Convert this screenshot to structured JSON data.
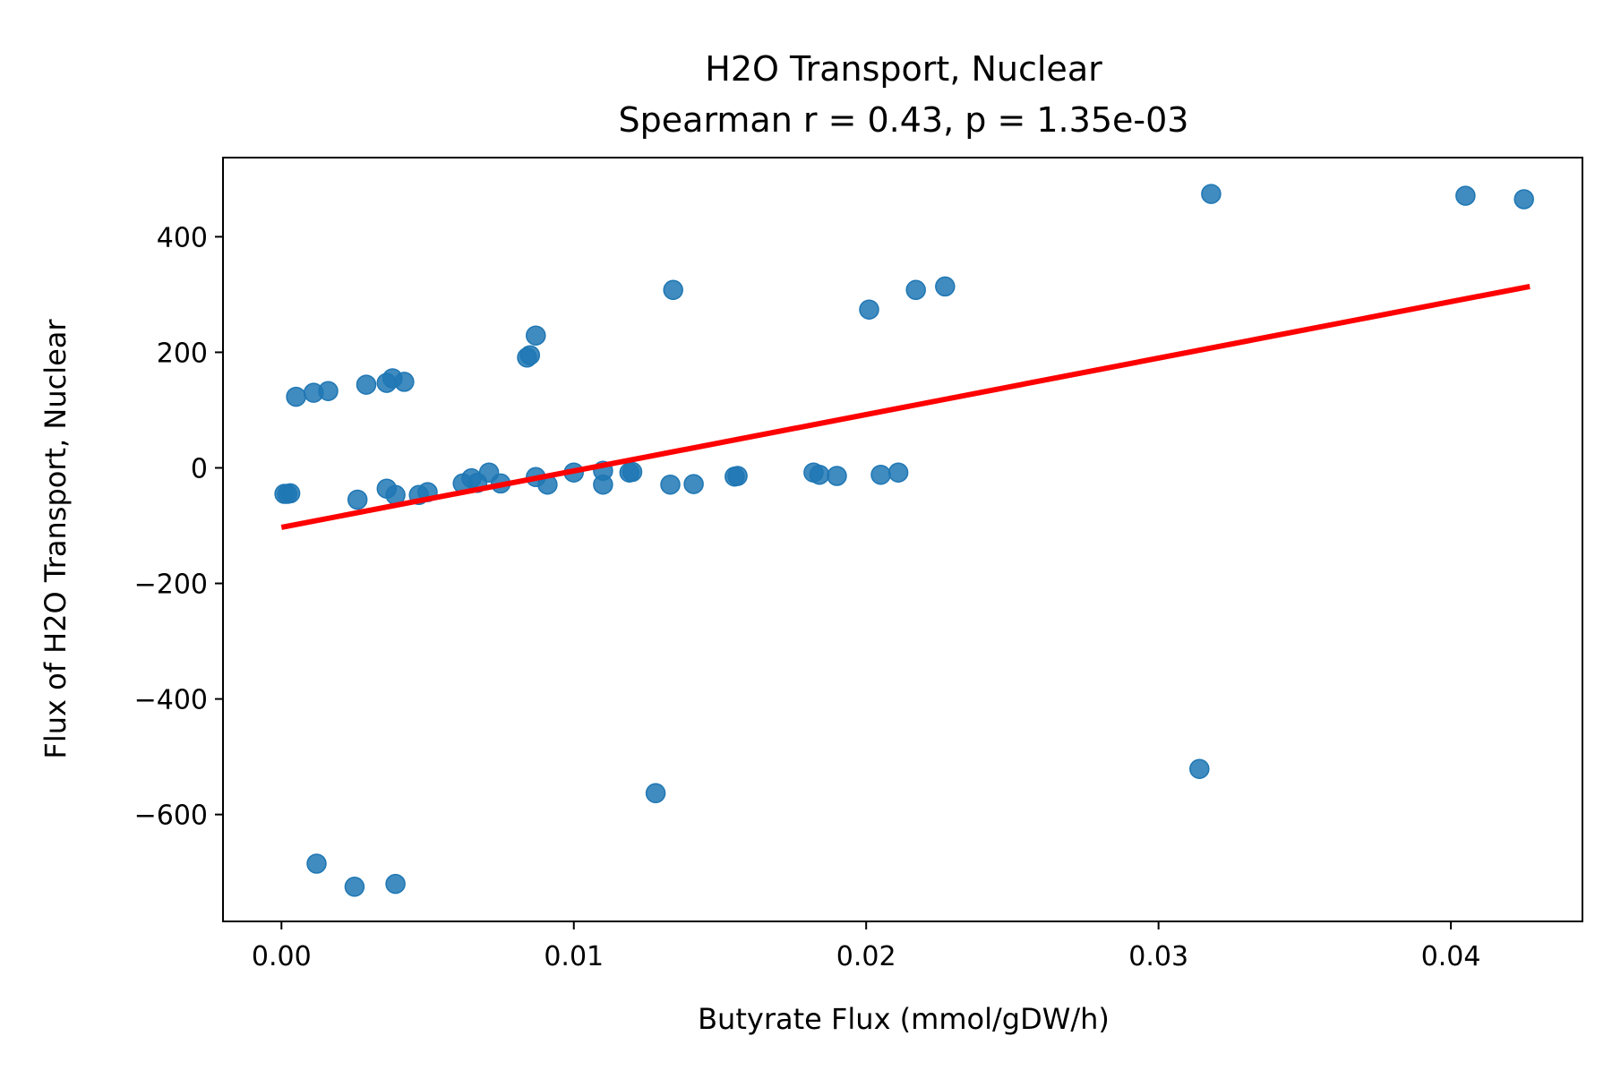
{
  "chart_data": {
    "type": "scatter",
    "title": "H2O Transport, Nuclear",
    "subtitle": "Spearman r = 0.43, p = 1.35e-03",
    "xlabel": "Butyrate Flux (mmol/gDW/h)",
    "ylabel": "Flux of H2O Transport, Nuclear",
    "xlim": [
      -0.002,
      0.0445
    ],
    "ylim": [
      -785,
      537
    ],
    "x_ticks": [
      0.0,
      0.01,
      0.02,
      0.03,
      0.04
    ],
    "x_tick_labels": [
      "0.00",
      "0.01",
      "0.02",
      "0.03",
      "0.04"
    ],
    "y_ticks": [
      -600,
      -400,
      -200,
      0,
      200,
      400
    ],
    "y_tick_labels": [
      "−600",
      "−400",
      "−200",
      "0",
      "200",
      "400"
    ],
    "grid": false,
    "legend": "none",
    "colors": {
      "points": "#1f77b4",
      "fit_line": "#ff0000"
    },
    "series": [
      {
        "type": "scatter",
        "points": [
          [
            0.0001,
            -45
          ],
          [
            0.0002,
            -45
          ],
          [
            0.0003,
            -44
          ],
          [
            0.0005,
            123
          ],
          [
            0.0011,
            130
          ],
          [
            0.0016,
            133
          ],
          [
            0.0026,
            -55
          ],
          [
            0.0029,
            144
          ],
          [
            0.0036,
            -36
          ],
          [
            0.0036,
            147
          ],
          [
            0.0038,
            155
          ],
          [
            0.0039,
            -47
          ],
          [
            0.0042,
            149
          ],
          [
            0.0047,
            -47
          ],
          [
            0.005,
            -42
          ],
          [
            0.0062,
            -27
          ],
          [
            0.0065,
            -18
          ],
          [
            0.0067,
            -26
          ],
          [
            0.0071,
            -8
          ],
          [
            0.0075,
            -27
          ],
          [
            0.0084,
            191
          ],
          [
            0.0085,
            195
          ],
          [
            0.0087,
            -16
          ],
          [
            0.0087,
            229
          ],
          [
            0.0091,
            -29
          ],
          [
            0.01,
            -8
          ],
          [
            0.011,
            -29
          ],
          [
            0.011,
            -5
          ],
          [
            0.0119,
            -8
          ],
          [
            0.012,
            -7
          ],
          [
            0.0133,
            -29
          ],
          [
            0.0134,
            308
          ],
          [
            0.0141,
            -28
          ],
          [
            0.0155,
            -15
          ],
          [
            0.0156,
            -14
          ],
          [
            0.0182,
            -8
          ],
          [
            0.0184,
            -12
          ],
          [
            0.019,
            -14
          ],
          [
            0.0201,
            274
          ],
          [
            0.0205,
            -12
          ],
          [
            0.0211,
            -8
          ],
          [
            0.0217,
            308
          ],
          [
            0.0227,
            314
          ],
          [
            0.0318,
            474
          ],
          [
            0.0405,
            471
          ],
          [
            0.0425,
            465
          ],
          [
            0.0012,
            -685
          ],
          [
            0.0025,
            -725
          ],
          [
            0.0039,
            -720
          ],
          [
            0.0128,
            -563
          ],
          [
            0.0314,
            -521
          ]
        ]
      },
      {
        "type": "line",
        "points": [
          [
            0.0,
            -103
          ],
          [
            0.0427,
            314
          ]
        ]
      }
    ]
  }
}
